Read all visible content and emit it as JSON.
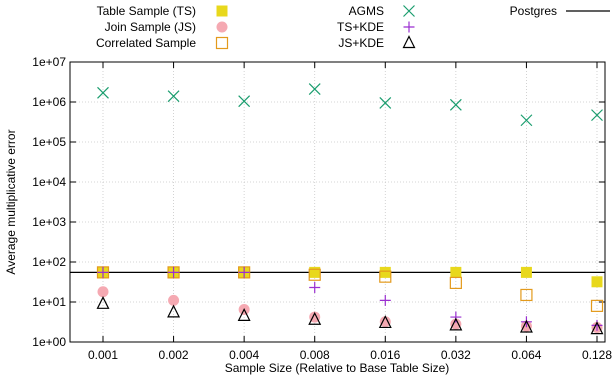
{
  "chart_data": {
    "type": "scatter",
    "xlabel": "Sample Size (Relative to Base Table Size)",
    "ylabel": "Average multiplicative error",
    "y_scale": "log",
    "ylim": [
      1,
      10000000
    ],
    "y_ticks": [
      "1e+00",
      "1e+01",
      "1e+02",
      "1e+03",
      "1e+04",
      "1e+05",
      "1e+06",
      "1e+07"
    ],
    "categories": [
      "0.001",
      "0.002",
      "0.004",
      "0.008",
      "0.016",
      "0.032",
      "0.064",
      "0.128"
    ],
    "grid": true,
    "legend_position": "top",
    "series": [
      {
        "name": "Table Sample (TS)",
        "marker": "filled-square",
        "color": "#e8d81c",
        "values": [
          55,
          55,
          55,
          55,
          55,
          55,
          55,
          32
        ]
      },
      {
        "name": "Join Sample (JS)",
        "marker": "filled-circle",
        "color": "#f5a9b2",
        "values": [
          18,
          11,
          6.5,
          4.2,
          3.2,
          2.8,
          2.5,
          2.3
        ]
      },
      {
        "name": "Correlated Sample",
        "marker": "open-square",
        "color": "#e39a1c",
        "values": [
          55,
          55,
          55,
          48,
          43,
          30,
          15,
          8
        ]
      },
      {
        "name": "AGMS",
        "marker": "x",
        "color": "#1a9d6e",
        "values": [
          1700000,
          1400000,
          1050000,
          2100000,
          950000,
          850000,
          350000,
          470000
        ]
      },
      {
        "name": "TS+KDE",
        "marker": "plus",
        "color": "#9a2fd0",
        "values": [
          55,
          55,
          55,
          23,
          11,
          4.2,
          3.2,
          2.6
        ]
      },
      {
        "name": "JS+KDE",
        "marker": "open-triangle",
        "color": "#000000",
        "values": [
          9,
          5.5,
          4.5,
          3.6,
          3.0,
          2.6,
          2.3,
          2.1
        ]
      }
    ],
    "reference_lines": [
      {
        "name": "Postgres",
        "value": 55,
        "color": "#000000"
      }
    ]
  }
}
